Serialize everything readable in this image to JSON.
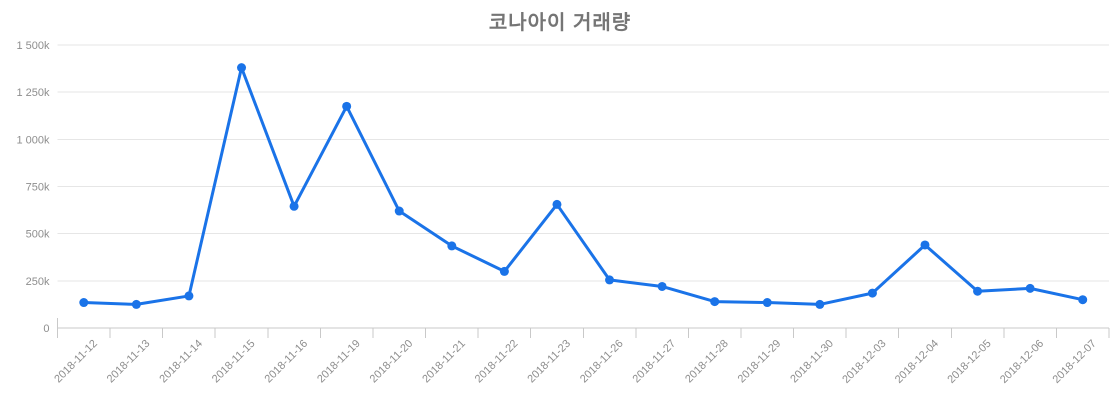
{
  "chart": {
    "title": "코나아이 거래량"
  },
  "colors": {
    "line": "#1a73e8",
    "grid": "#e6e6e6",
    "axis": "#c9c9c9",
    "tick_text": "#8e8e8e",
    "title": "#757575"
  },
  "chart_data": {
    "type": "line",
    "title": "코나아이 거래량",
    "xlabel": "",
    "ylabel": "",
    "categories": [
      "2018-11-12",
      "2018-11-13",
      "2018-11-14",
      "2018-11-15",
      "2018-11-16",
      "2018-11-19",
      "2018-11-20",
      "2018-11-21",
      "2018-11-22",
      "2018-11-23",
      "2018-11-26",
      "2018-11-27",
      "2018-11-28",
      "2018-11-29",
      "2018-11-30",
      "2018-12-03",
      "2018-12-04",
      "2018-12-05",
      "2018-12-06",
      "2018-12-07"
    ],
    "series": [
      {
        "name": "거래량",
        "values": [
          135000,
          125000,
          170000,
          1380000,
          645000,
          1175000,
          620000,
          435000,
          300000,
          655000,
          255000,
          220000,
          140000,
          135000,
          125000,
          185000,
          440000,
          195000,
          210000,
          150000
        ]
      }
    ],
    "ylim": [
      0,
      1500000
    ],
    "ytick_step": 250000,
    "ytick_labels": [
      "0",
      "250k",
      "500k",
      "750k",
      "1 000k",
      "1 250k",
      "1 500k"
    ],
    "grid": "horizontal",
    "legend": "none",
    "marker": "circle",
    "x_label_rotation": -45
  }
}
